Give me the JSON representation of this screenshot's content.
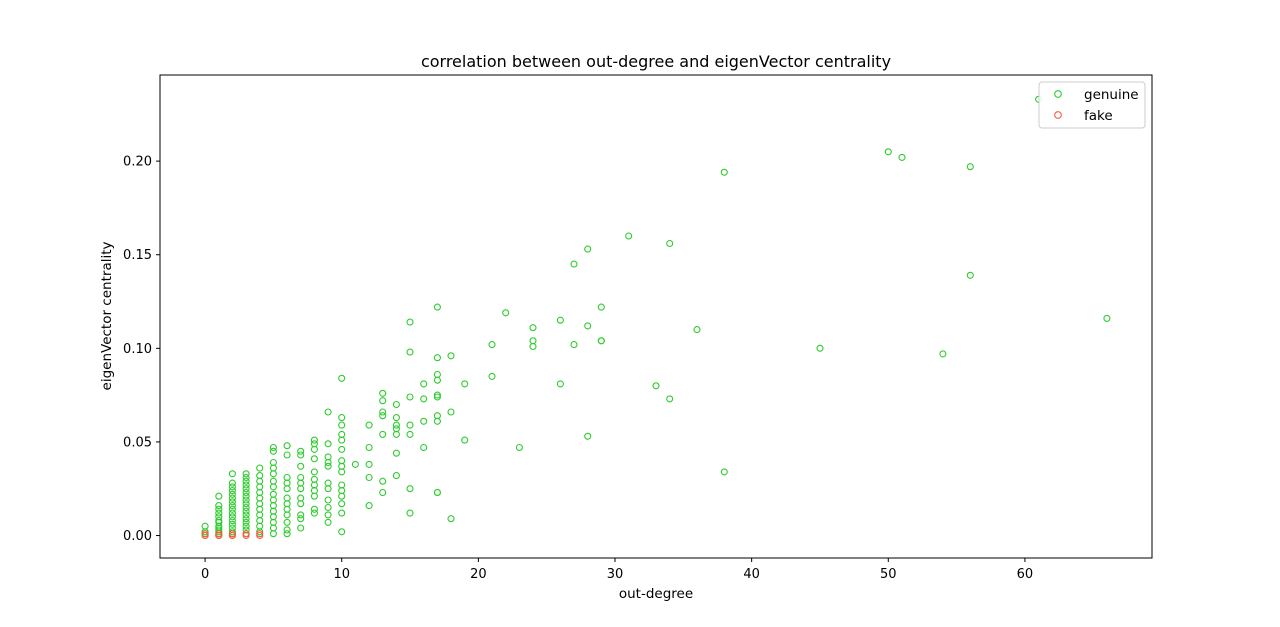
{
  "chart_data": {
    "type": "scatter",
    "title": "correlation between out-degree and eigenVector centrality",
    "xlabel": "out-degree",
    "ylabel": "eigenVector centrality",
    "xlim": [
      -3.3,
      69.3
    ],
    "ylim": [
      -0.012,
      0.246
    ],
    "xticks": [
      0,
      10,
      20,
      30,
      40,
      50,
      60
    ],
    "xtick_labels": [
      "0",
      "10",
      "20",
      "30",
      "40",
      "50",
      "60"
    ],
    "yticks": [
      0,
      0.05,
      0.1,
      0.15,
      0.2
    ],
    "ytick_labels": [
      "0.00",
      "0.05",
      "0.10",
      "0.15",
      "0.20"
    ],
    "grid": false,
    "legend_position": "top-right",
    "marker": "hollow-circle",
    "series": [
      {
        "name": "genuine",
        "color": "#2ecc2e",
        "points": [
          [
            0,
            0.005
          ],
          [
            0,
            0.002
          ],
          [
            0,
            0.001
          ],
          [
            0,
            0.0
          ],
          [
            1,
            0.021
          ],
          [
            1,
            0.016
          ],
          [
            1,
            0.014
          ],
          [
            1,
            0.012
          ],
          [
            1,
            0.01
          ],
          [
            1,
            0.008
          ],
          [
            1,
            0.007
          ],
          [
            1,
            0.005
          ],
          [
            1,
            0.004
          ],
          [
            1,
            0.003
          ],
          [
            1,
            0.002
          ],
          [
            1,
            0.001
          ],
          [
            1,
            0.0
          ],
          [
            2,
            0.033
          ],
          [
            2,
            0.028
          ],
          [
            2,
            0.026
          ],
          [
            2,
            0.024
          ],
          [
            2,
            0.022
          ],
          [
            2,
            0.02
          ],
          [
            2,
            0.018
          ],
          [
            2,
            0.016
          ],
          [
            2,
            0.014
          ],
          [
            2,
            0.012
          ],
          [
            2,
            0.01
          ],
          [
            2,
            0.008
          ],
          [
            2,
            0.006
          ],
          [
            2,
            0.004
          ],
          [
            2,
            0.002
          ],
          [
            2,
            0.001
          ],
          [
            3,
            0.033
          ],
          [
            3,
            0.031
          ],
          [
            3,
            0.029
          ],
          [
            3,
            0.027
          ],
          [
            3,
            0.025
          ],
          [
            3,
            0.023
          ],
          [
            3,
            0.021
          ],
          [
            3,
            0.019
          ],
          [
            3,
            0.017
          ],
          [
            3,
            0.015
          ],
          [
            3,
            0.013
          ],
          [
            3,
            0.011
          ],
          [
            3,
            0.009
          ],
          [
            3,
            0.007
          ],
          [
            3,
            0.005
          ],
          [
            3,
            0.003
          ],
          [
            3,
            0.001
          ],
          [
            4,
            0.036
          ],
          [
            4,
            0.032
          ],
          [
            4,
            0.029
          ],
          [
            4,
            0.026
          ],
          [
            4,
            0.023
          ],
          [
            4,
            0.02
          ],
          [
            4,
            0.017
          ],
          [
            4,
            0.014
          ],
          [
            4,
            0.011
          ],
          [
            4,
            0.008
          ],
          [
            4,
            0.005
          ],
          [
            4,
            0.002
          ],
          [
            5,
            0.047
          ],
          [
            5,
            0.045
          ],
          [
            5,
            0.039
          ],
          [
            5,
            0.036
          ],
          [
            5,
            0.033
          ],
          [
            5,
            0.029
          ],
          [
            5,
            0.026
          ],
          [
            5,
            0.022
          ],
          [
            5,
            0.019
          ],
          [
            5,
            0.016
          ],
          [
            5,
            0.013
          ],
          [
            5,
            0.01
          ],
          [
            5,
            0.007
          ],
          [
            5,
            0.004
          ],
          [
            5,
            0.001
          ],
          [
            6,
            0.048
          ],
          [
            6,
            0.043
          ],
          [
            6,
            0.031
          ],
          [
            6,
            0.028
          ],
          [
            6,
            0.025
          ],
          [
            6,
            0.02
          ],
          [
            6,
            0.017
          ],
          [
            6,
            0.014
          ],
          [
            6,
            0.011
          ],
          [
            6,
            0.007
          ],
          [
            6,
            0.003
          ],
          [
            6,
            0.001
          ],
          [
            7,
            0.045
          ],
          [
            7,
            0.043
          ],
          [
            7,
            0.037
          ],
          [
            7,
            0.031
          ],
          [
            7,
            0.028
          ],
          [
            7,
            0.025
          ],
          [
            7,
            0.02
          ],
          [
            7,
            0.017
          ],
          [
            7,
            0.011
          ],
          [
            7,
            0.009
          ],
          [
            7,
            0.004
          ],
          [
            8,
            0.051
          ],
          [
            8,
            0.049
          ],
          [
            8,
            0.046
          ],
          [
            8,
            0.041
          ],
          [
            8,
            0.034
          ],
          [
            8,
            0.03
          ],
          [
            8,
            0.027
          ],
          [
            8,
            0.024
          ],
          [
            8,
            0.021
          ],
          [
            8,
            0.014
          ],
          [
            8,
            0.012
          ],
          [
            9,
            0.066
          ],
          [
            9,
            0.049
          ],
          [
            9,
            0.042
          ],
          [
            9,
            0.039
          ],
          [
            9,
            0.037
          ],
          [
            9,
            0.028
          ],
          [
            9,
            0.025
          ],
          [
            9,
            0.019
          ],
          [
            9,
            0.015
          ],
          [
            9,
            0.011
          ],
          [
            9,
            0.007
          ],
          [
            10,
            0.084
          ],
          [
            10,
            0.063
          ],
          [
            10,
            0.059
          ],
          [
            10,
            0.054
          ],
          [
            10,
            0.051
          ],
          [
            10,
            0.046
          ],
          [
            10,
            0.04
          ],
          [
            10,
            0.037
          ],
          [
            10,
            0.034
          ],
          [
            10,
            0.027
          ],
          [
            10,
            0.024
          ],
          [
            10,
            0.021
          ],
          [
            10,
            0.017
          ],
          [
            10,
            0.012
          ],
          [
            10,
            0.002
          ],
          [
            11,
            0.038
          ],
          [
            12,
            0.059
          ],
          [
            12,
            0.047
          ],
          [
            12,
            0.038
          ],
          [
            12,
            0.031
          ],
          [
            12,
            0.016
          ],
          [
            13,
            0.076
          ],
          [
            13,
            0.072
          ],
          [
            13,
            0.066
          ],
          [
            13,
            0.064
          ],
          [
            13,
            0.054
          ],
          [
            13,
            0.029
          ],
          [
            13,
            0.023
          ],
          [
            14,
            0.07
          ],
          [
            14,
            0.063
          ],
          [
            14,
            0.059
          ],
          [
            14,
            0.057
          ],
          [
            14,
            0.054
          ],
          [
            14,
            0.044
          ],
          [
            14,
            0.032
          ],
          [
            15,
            0.114
          ],
          [
            15,
            0.098
          ],
          [
            15,
            0.074
          ],
          [
            15,
            0.059
          ],
          [
            15,
            0.054
          ],
          [
            15,
            0.025
          ],
          [
            15,
            0.012
          ],
          [
            16,
            0.081
          ],
          [
            16,
            0.073
          ],
          [
            16,
            0.061
          ],
          [
            16,
            0.047
          ],
          [
            17,
            0.122
          ],
          [
            17,
            0.095
          ],
          [
            17,
            0.086
          ],
          [
            17,
            0.083
          ],
          [
            17,
            0.075
          ],
          [
            17,
            0.074
          ],
          [
            17,
            0.064
          ],
          [
            17,
            0.061
          ],
          [
            17,
            0.023
          ],
          [
            17,
            0.023
          ],
          [
            18,
            0.096
          ],
          [
            18,
            0.066
          ],
          [
            18,
            0.009
          ],
          [
            19,
            0.081
          ],
          [
            19,
            0.051
          ],
          [
            21,
            0.102
          ],
          [
            21,
            0.085
          ],
          [
            22,
            0.119
          ],
          [
            23,
            0.047
          ],
          [
            24,
            0.111
          ],
          [
            24,
            0.104
          ],
          [
            24,
            0.101
          ],
          [
            26,
            0.115
          ],
          [
            26,
            0.081
          ],
          [
            27,
            0.145
          ],
          [
            27,
            0.102
          ],
          [
            28,
            0.153
          ],
          [
            28,
            0.112
          ],
          [
            28,
            0.053
          ],
          [
            29,
            0.122
          ],
          [
            29,
            0.104
          ],
          [
            29,
            0.104
          ],
          [
            31,
            0.16
          ],
          [
            33,
            0.08
          ],
          [
            34,
            0.156
          ],
          [
            34,
            0.073
          ],
          [
            36,
            0.11
          ],
          [
            38,
            0.194
          ],
          [
            38,
            0.034
          ],
          [
            45,
            0.1
          ],
          [
            50,
            0.205
          ],
          [
            51,
            0.202
          ],
          [
            54,
            0.097
          ],
          [
            56,
            0.197
          ],
          [
            56,
            0.139
          ],
          [
            61,
            0.233
          ],
          [
            66,
            0.116
          ]
        ]
      },
      {
        "name": "fake",
        "color": "#f0603c",
        "points": [
          [
            0,
            0.0
          ],
          [
            0,
            0.001
          ],
          [
            1,
            0.0
          ],
          [
            1,
            0.001
          ],
          [
            1,
            0.0
          ],
          [
            2,
            0.0
          ],
          [
            2,
            0.001
          ],
          [
            2,
            0.0
          ],
          [
            3,
            0.0
          ],
          [
            3,
            0.001
          ],
          [
            4,
            0.0
          ],
          [
            4,
            0.001
          ]
        ]
      }
    ]
  }
}
